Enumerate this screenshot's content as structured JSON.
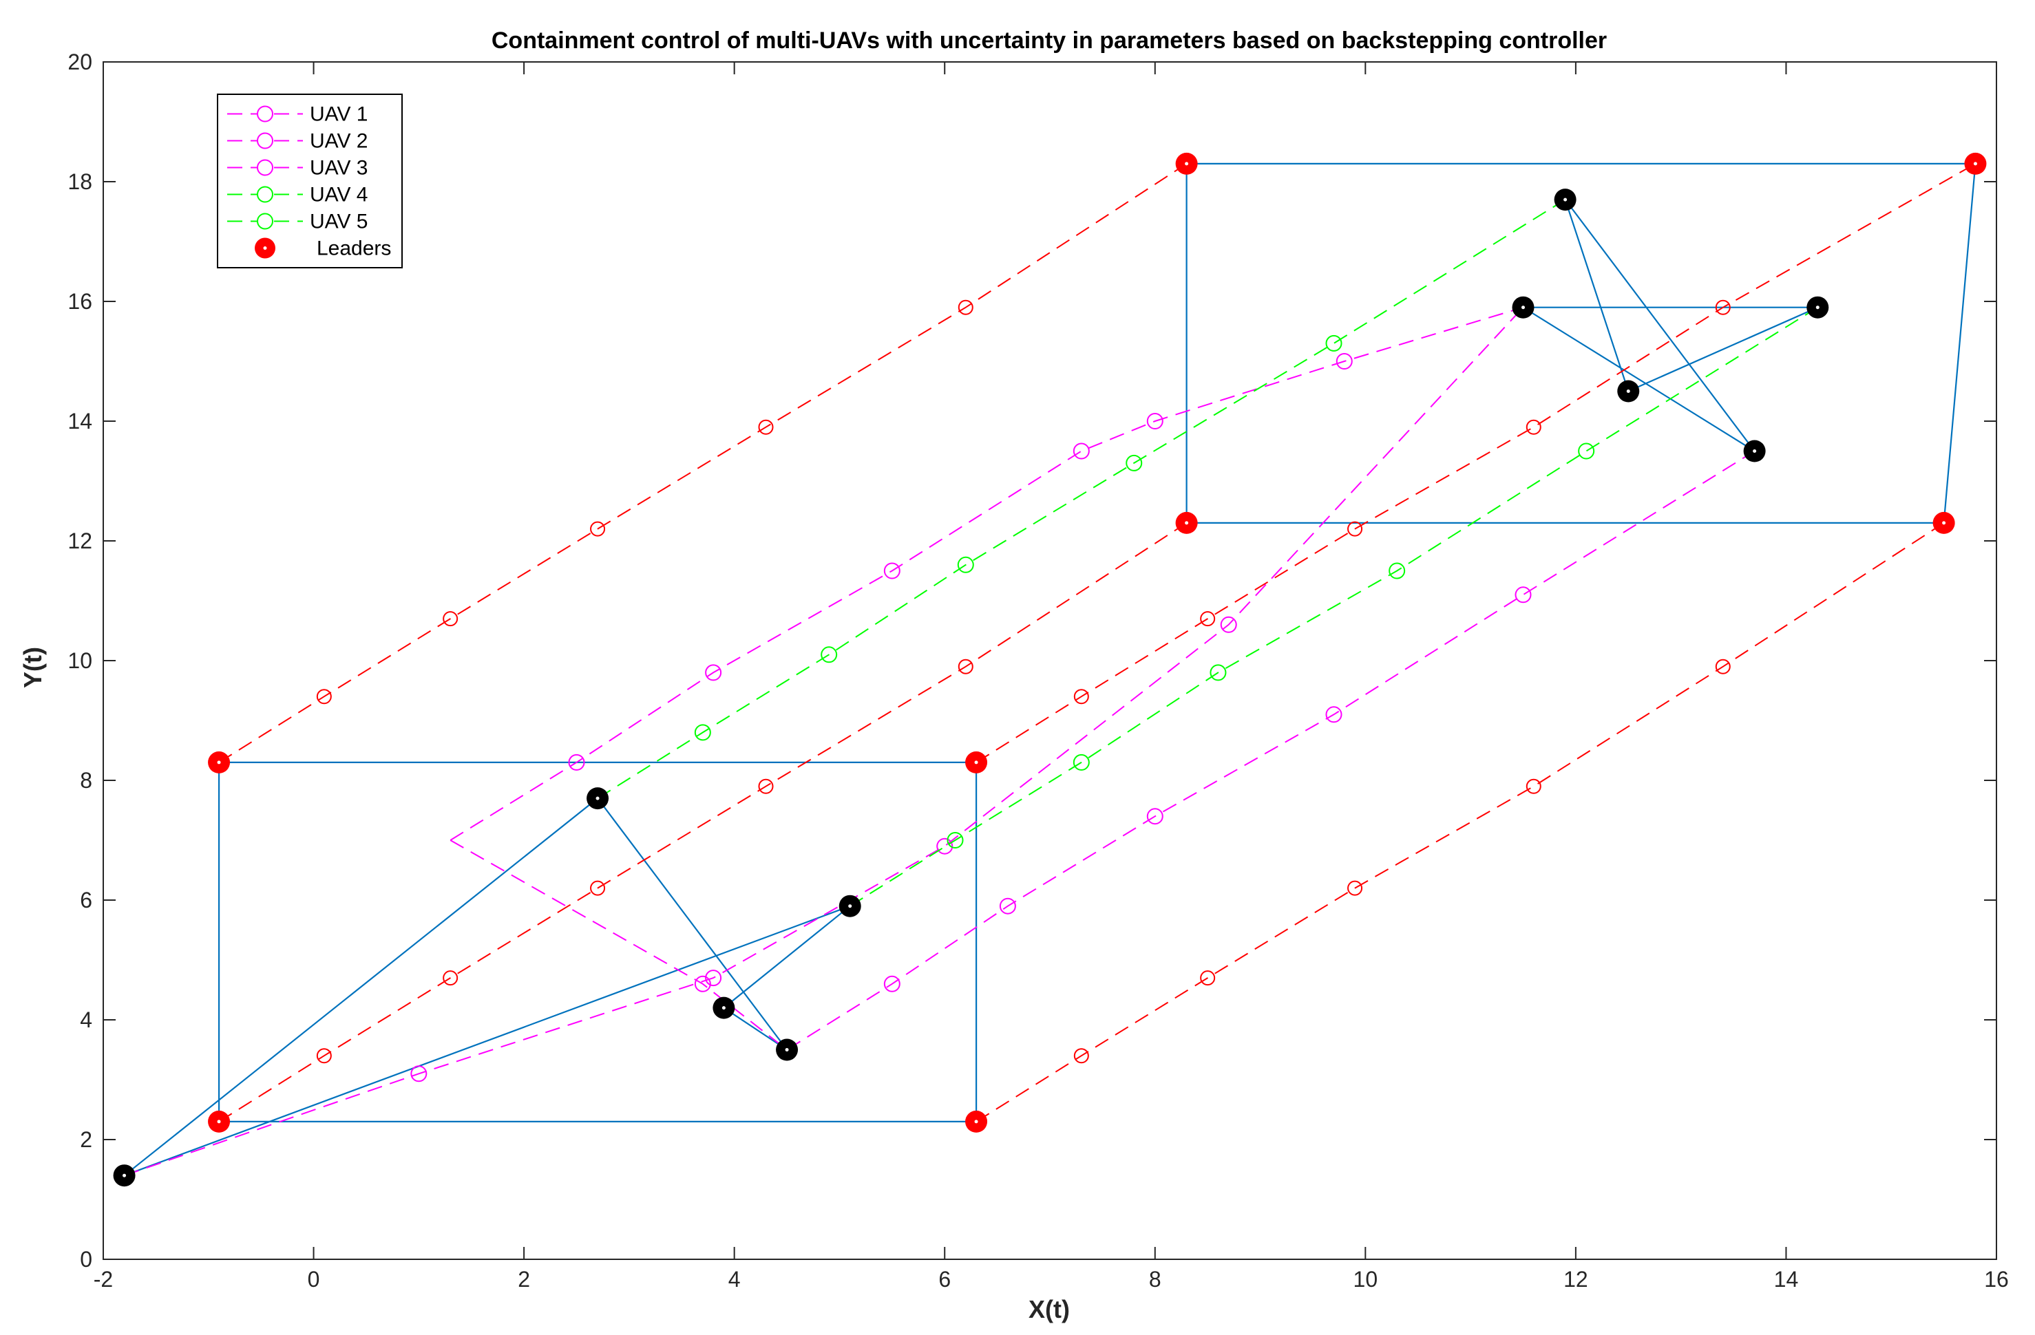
{
  "chart_data": {
    "type": "line",
    "title": "Containment control of multi-UAVs with uncertainty in parameters based on backstepping controller",
    "xlabel": "X(t)",
    "ylabel": "Y(t)",
    "xlim": [
      -2,
      16
    ],
    "ylim": [
      0,
      20
    ],
    "xticks": [
      -2,
      0,
      2,
      4,
      6,
      8,
      10,
      12,
      14,
      16
    ],
    "yticks": [
      0,
      2,
      4,
      6,
      8,
      10,
      12,
      14,
      16,
      18,
      20
    ],
    "grid": false,
    "legend_position": "top-left",
    "colors": {
      "uav_magenta": "#ff00ff",
      "uav_green": "#00ff00",
      "leader_red": "#ff0000",
      "leader_path_red": "#ff0000",
      "formation_blue": "#0072bd",
      "follower_black": "#000000",
      "axis": "#262626"
    },
    "series": [
      {
        "name": "UAV 1",
        "color": "#ff00ff",
        "marker": "circle",
        "x": [
          -1.8,
          1.0,
          3.8,
          6.0,
          8.7,
          11.5
        ],
        "y": [
          1.4,
          3.1,
          4.7,
          6.9,
          10.6,
          15.9
        ]
      },
      {
        "name": "UAV 2",
        "color": "#ff00ff",
        "marker": "circle",
        "x": [
          1.3,
          2.5,
          3.8,
          5.5,
          7.3,
          8.0,
          9.8,
          11.5
        ],
        "y": [
          7.0,
          8.3,
          9.8,
          11.5,
          13.5,
          14.0,
          15.0,
          15.9
        ]
      },
      {
        "name": "UAV 3",
        "color": "#ff00ff",
        "marker": "circle",
        "x": [
          1.3,
          3.7,
          4.5,
          5.5,
          6.6,
          8.0,
          9.7,
          11.5,
          13.7
        ],
        "y": [
          7.0,
          4.6,
          3.5,
          4.6,
          5.9,
          7.4,
          9.1,
          11.1,
          13.5
        ]
      },
      {
        "name": "UAV 4",
        "color": "#00ff00",
        "marker": "circle",
        "x": [
          2.7,
          3.7,
          4.9,
          6.2,
          7.8,
          9.7,
          11.9
        ],
        "y": [
          7.7,
          8.8,
          10.1,
          11.6,
          13.3,
          15.3,
          17.7
        ]
      },
      {
        "name": "UAV 5",
        "color": "#00ff00",
        "marker": "circle",
        "x": [
          5.1,
          6.1,
          7.3,
          8.6,
          10.3,
          12.1,
          14.3
        ],
        "y": [
          5.9,
          7.0,
          8.3,
          9.8,
          11.5,
          13.5,
          15.9
        ]
      },
      {
        "name": "Leaders",
        "color": "#ff0000",
        "marker": "filled-circle",
        "x": [
          -0.9,
          6.3,
          -0.9,
          6.3,
          8.3,
          15.8,
          8.3,
          15.5
        ],
        "y": [
          8.3,
          8.3,
          2.3,
          2.3,
          18.3,
          18.3,
          12.3,
          12.3
        ]
      }
    ],
    "leader_paths": [
      {
        "name": "leader-path-1",
        "x": [
          -0.9,
          0.1,
          1.3,
          2.7,
          4.3,
          6.2,
          8.3
        ],
        "y": [
          8.3,
          9.4,
          10.7,
          12.2,
          13.9,
          15.9,
          18.3
        ]
      },
      {
        "name": "leader-path-2",
        "x": [
          -0.9,
          0.1,
          1.3,
          2.7,
          4.3,
          6.2,
          8.3
        ],
        "y": [
          2.3,
          3.4,
          4.7,
          6.2,
          7.9,
          9.9,
          12.3
        ]
      },
      {
        "name": "leader-path-3",
        "x": [
          6.3,
          7.3,
          8.5,
          9.9,
          11.6,
          13.4,
          15.8
        ],
        "y": [
          8.3,
          9.4,
          10.7,
          12.2,
          13.9,
          15.9,
          18.3
        ]
      },
      {
        "name": "leader-path-4",
        "x": [
          6.3,
          7.3,
          8.5,
          9.9,
          11.6,
          13.4,
          15.5
        ],
        "y": [
          2.3,
          3.4,
          4.7,
          6.2,
          7.9,
          9.9,
          12.3
        ]
      }
    ],
    "formations": [
      {
        "name": "leader-hull-initial",
        "x": [
          -0.9,
          6.3,
          6.3,
          -0.9,
          -0.9
        ],
        "y": [
          8.3,
          8.3,
          2.3,
          2.3,
          8.3
        ]
      },
      {
        "name": "leader-hull-final",
        "x": [
          8.3,
          15.8,
          15.5,
          8.3,
          8.3
        ],
        "y": [
          18.3,
          18.3,
          12.3,
          12.3,
          18.3
        ]
      },
      {
        "name": "follower-links-initial",
        "x": [
          -1.8,
          2.7,
          4.5,
          3.9,
          5.1,
          -1.8
        ],
        "y": [
          1.4,
          7.7,
          3.5,
          4.2,
          5.9,
          1.4
        ]
      },
      {
        "name": "follower-links-final",
        "x": [
          11.5,
          14.3,
          12.5,
          11.9,
          13.7,
          11.5
        ],
        "y": [
          15.9,
          15.9,
          14.5,
          17.7,
          13.5,
          15.9
        ]
      }
    ],
    "followers_initial": {
      "x": [
        -1.8,
        2.7,
        3.9,
        4.5,
        5.1
      ],
      "y": [
        1.4,
        7.7,
        4.2,
        3.5,
        5.9
      ]
    },
    "followers_final": {
      "x": [
        11.5,
        11.9,
        12.5,
        13.7,
        14.3
      ],
      "y": [
        15.9,
        17.7,
        14.5,
        13.5,
        15.9
      ]
    }
  }
}
